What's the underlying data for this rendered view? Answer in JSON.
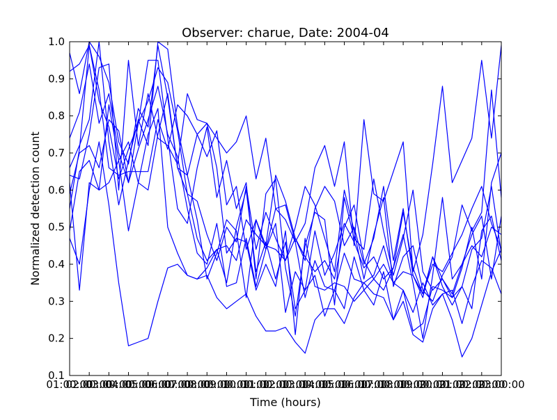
{
  "chart_data": {
    "type": "line",
    "title": "Observer: charue, Date: 2004-04",
    "xlabel": "Time (hours)",
    "ylabel": "Normalized detection count",
    "x_tick_labels": [
      "01:00:00",
      "02:00:00",
      "03:00:00",
      "04:00:00",
      "05:00:00",
      "06:00:00",
      "07:00:00",
      "08:00:00",
      "09:00:00",
      "10:00:00",
      "11:00:00",
      "12:00:00",
      "13:00:00",
      "14:00:00",
      "15:00:00",
      "16:00:00",
      "17:00:00",
      "18:00:00",
      "19:00:00",
      "20:00:00",
      "21:00:00",
      "22:00:00",
      "23:00:00"
    ],
    "xlim": [
      1,
      23
    ],
    "y_ticks": [
      "0.1",
      "0.2",
      "0.3",
      "0.4",
      "0.5",
      "0.6",
      "0.7",
      "0.8",
      "0.9",
      "1.0"
    ],
    "ylim": [
      0.1,
      1.0
    ],
    "grid": false,
    "line_color": "#0000ff",
    "x": [
      1,
      1.5,
      2,
      2.5,
      3,
      3.5,
      4,
      4.5,
      5,
      5.5,
      6,
      6.5,
      7,
      7.5,
      8,
      8.5,
      9,
      9.5,
      10,
      10.5,
      11,
      11.5,
      12,
      12.5,
      13,
      13.5,
      14,
      14.5,
      15,
      15.5,
      16,
      16.5,
      17,
      17.5,
      18,
      18.5,
      19,
      19.5,
      20,
      20.5,
      21,
      21.5,
      22,
      22.5,
      23
    ],
    "series": [
      {
        "values": [
          0.97,
          0.86,
          1.0,
          0.96,
          0.89,
          0.73,
          0.67,
          0.82,
          0.77,
          0.99,
          0.85,
          0.66,
          0.64,
          0.75,
          0.69,
          0.76,
          0.56,
          0.61,
          0.44,
          0.52,
          0.45,
          0.64,
          0.57,
          0.47,
          0.41,
          0.55,
          0.61,
          0.57,
          0.45,
          0.5,
          0.4,
          0.47,
          0.61,
          0.41,
          0.55,
          0.37,
          0.32,
          0.4,
          0.38,
          0.43,
          0.48,
          0.55,
          0.61,
          0.51,
          0.44
        ]
      },
      {
        "values": [
          0.92,
          0.94,
          0.99,
          0.84,
          0.77,
          0.63,
          0.71,
          0.78,
          0.84,
          0.93,
          0.89,
          0.76,
          0.59,
          0.57,
          0.48,
          0.41,
          0.5,
          0.46,
          0.61,
          0.44,
          0.54,
          0.47,
          0.41,
          0.5,
          0.61,
          0.56,
          0.47,
          0.38,
          0.6,
          0.49,
          0.36,
          0.48,
          0.58,
          0.34,
          0.42,
          0.45,
          0.33,
          0.3,
          0.37,
          0.42,
          0.56,
          0.49,
          0.54,
          0.87,
          0.58
        ]
      },
      {
        "values": [
          0.74,
          0.81,
          0.94,
          0.78,
          0.86,
          0.7,
          0.62,
          0.78,
          0.95,
          0.95,
          0.74,
          0.55,
          0.51,
          0.66,
          0.77,
          0.58,
          0.68,
          0.55,
          0.62,
          0.36,
          0.59,
          0.63,
          0.39,
          0.26,
          0.45,
          0.54,
          0.52,
          0.29,
          0.58,
          0.47,
          0.44,
          0.63,
          0.49,
          0.37,
          0.47,
          0.6,
          0.38,
          0.33,
          0.36,
          0.31,
          0.39,
          0.5,
          0.36,
          0.62,
          0.7
        ]
      },
      {
        "values": [
          0.66,
          0.72,
          0.79,
          1.0,
          0.73,
          0.56,
          0.68,
          0.79,
          0.72,
          1.0,
          0.98,
          0.77,
          0.64,
          0.52,
          0.36,
          0.43,
          0.52,
          0.49,
          0.31,
          0.52,
          0.44,
          0.51,
          0.27,
          0.38,
          0.33,
          0.49,
          0.37,
          0.43,
          0.51,
          0.46,
          0.39,
          0.42,
          0.36,
          0.39,
          0.54,
          0.39,
          0.32,
          0.42,
          0.34,
          0.29,
          0.34,
          0.44,
          0.47,
          0.61,
          0.43
        ]
      },
      {
        "values": [
          0.55,
          0.71,
          0.99,
          0.87,
          0.66,
          0.64,
          0.65,
          0.65,
          0.65,
          0.79,
          0.71,
          0.83,
          0.8,
          0.75,
          0.78,
          0.66,
          0.43,
          0.47,
          0.46,
          0.33,
          0.4,
          0.34,
          0.49,
          0.21,
          0.47,
          0.34,
          0.33,
          0.35,
          0.34,
          0.3,
          0.33,
          0.36,
          0.4,
          0.35,
          0.38,
          0.37,
          0.31,
          0.42,
          0.36,
          0.32,
          0.4,
          0.45,
          0.42,
          0.5,
          0.48
        ]
      },
      {
        "values": [
          0.59,
          0.7,
          0.72,
          0.66,
          0.79,
          0.76,
          0.62,
          0.71,
          0.79,
          0.88,
          0.75,
          0.69,
          0.55,
          0.43,
          0.4,
          0.51,
          0.34,
          0.35,
          0.47,
          0.34,
          0.44,
          0.55,
          0.52,
          0.46,
          0.31,
          0.41,
          0.34,
          0.33,
          0.43,
          0.36,
          0.35,
          0.37,
          0.45,
          0.35,
          0.33,
          0.22,
          0.24,
          0.34,
          0.33,
          0.31,
          0.34,
          0.28,
          0.49,
          0.53,
          0.41
        ]
      },
      {
        "values": [
          0.62,
          0.33,
          0.62,
          0.6,
          0.62,
          0.68,
          0.73,
          0.62,
          0.6,
          0.75,
          0.86,
          0.66,
          0.59,
          0.47,
          0.41,
          0.44,
          0.35,
          0.5,
          0.6,
          0.38,
          0.46,
          0.36,
          0.46,
          0.28,
          0.33,
          0.37,
          0.26,
          0.33,
          0.28,
          0.42,
          0.33,
          0.29,
          0.38,
          0.25,
          0.33,
          0.27,
          0.35,
          0.29,
          0.32,
          0.33,
          0.24,
          0.34,
          0.41,
          0.39,
          0.32
        ]
      },
      {
        "values": [
          0.47,
          0.4,
          0.6,
          0.73,
          0.56,
          0.35,
          0.18,
          0.19,
          0.2,
          0.3,
          0.39,
          0.4,
          0.37,
          0.36,
          0.37,
          0.31,
          0.28,
          0.3,
          0.32,
          0.26,
          0.22,
          0.22,
          0.23,
          0.19,
          0.16,
          0.25,
          0.28,
          0.28,
          0.24,
          0.31,
          0.35,
          0.32,
          0.31,
          0.25,
          0.3,
          0.21,
          0.19,
          0.28,
          0.32,
          0.25,
          0.15,
          0.2,
          0.29,
          0.38,
          0.44
        ]
      },
      {
        "values": [
          0.49,
          0.65,
          0.68,
          0.6,
          0.83,
          0.68,
          0.49,
          0.62,
          0.75,
          0.82,
          0.5,
          0.43,
          0.37,
          0.36,
          0.39,
          0.44,
          0.45,
          0.41,
          0.52,
          0.48,
          0.45,
          0.44,
          0.41,
          0.47,
          0.42,
          0.38,
          0.41,
          0.36,
          0.5,
          0.56,
          0.41,
          0.36,
          0.33,
          0.39,
          0.48,
          0.35,
          0.2,
          0.37,
          0.58,
          0.36,
          0.4,
          0.48,
          0.53,
          0.36,
          0.53
        ]
      },
      {
        "values": [
          0.64,
          0.63,
          0.75,
          0.93,
          0.94,
          0.6,
          0.95,
          0.72,
          0.86,
          0.74,
          0.72,
          0.67,
          0.86,
          0.79,
          0.78,
          0.74,
          0.7,
          0.73,
          0.8,
          0.63,
          0.74,
          0.55,
          0.56,
          0.46,
          0.51,
          0.66,
          0.72,
          0.61,
          0.73,
          0.45,
          0.79,
          0.59,
          0.57,
          0.65,
          0.73,
          0.38,
          0.48,
          0.67,
          0.88,
          0.62,
          0.68,
          0.74,
          0.95,
          0.74,
          0.99
        ]
      }
    ]
  }
}
